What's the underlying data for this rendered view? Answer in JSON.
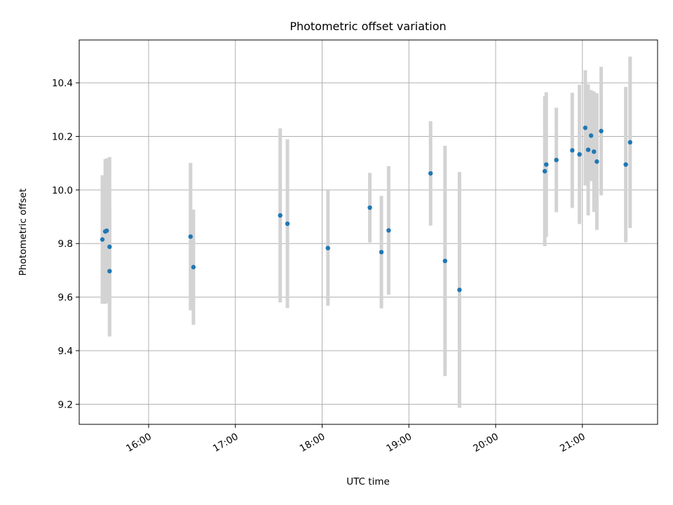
{
  "chart_data": {
    "type": "scatter",
    "title": "Photometric offset variation",
    "xlabel": "UTC time",
    "ylabel": "Photometric offset",
    "xlim": [
      "15:12",
      "21:52"
    ],
    "ylim": [
      9.125,
      10.56
    ],
    "grid": true,
    "x_ticks": [
      "16:00",
      "17:00",
      "18:00",
      "19:00",
      "20:00",
      "21:00"
    ],
    "y_ticks": [
      "9.2",
      "9.4",
      "9.6",
      "9.8",
      "10.0",
      "10.2",
      "10.4"
    ],
    "colors": {
      "point": "#1f77b4",
      "errorbar": "#d3d3d3",
      "grid": "#b0b0b0"
    },
    "points": [
      {
        "x": "15:28",
        "y": 9.815,
        "err": 0.24
      },
      {
        "x": "15:30",
        "y": 9.845,
        "err": 0.27
      },
      {
        "x": "15:31",
        "y": 9.848,
        "err": 0.27
      },
      {
        "x": "15:33",
        "y": 9.788,
        "err": 0.335
      },
      {
        "x": "15:33",
        "y": 9.697,
        "err": 0.24
      },
      {
        "x": "16:29",
        "y": 9.826,
        "err": 0.275
      },
      {
        "x": "16:31",
        "y": 9.712,
        "err": 0.215
      },
      {
        "x": "17:31",
        "y": 9.905,
        "err": 0.325
      },
      {
        "x": "17:36",
        "y": 9.874,
        "err": 0.315
      },
      {
        "x": "18:04",
        "y": 9.783,
        "err": 0.215
      },
      {
        "x": "18:33",
        "y": 9.934,
        "err": 0.13
      },
      {
        "x": "18:41",
        "y": 9.768,
        "err": 0.21
      },
      {
        "x": "18:46",
        "y": 9.849,
        "err": 0.24
      },
      {
        "x": "19:15",
        "y": 10.062,
        "err": 0.195
      },
      {
        "x": "19:25",
        "y": 9.735,
        "err": 0.43
      },
      {
        "x": "19:35",
        "y": 9.627,
        "err": 0.44
      },
      {
        "x": "20:34",
        "y": 10.07,
        "err": 0.28
      },
      {
        "x": "20:35",
        "y": 10.095,
        "err": 0.27
      },
      {
        "x": "20:42",
        "y": 10.112,
        "err": 0.195
      },
      {
        "x": "20:53",
        "y": 10.148,
        "err": 0.215
      },
      {
        "x": "20:58",
        "y": 10.133,
        "err": 0.26
      },
      {
        "x": "21:02",
        "y": 10.232,
        "err": 0.215
      },
      {
        "x": "21:04",
        "y": 10.15,
        "err": 0.245
      },
      {
        "x": "21:06",
        "y": 10.203,
        "err": 0.17
      },
      {
        "x": "21:08",
        "y": 10.143,
        "err": 0.225
      },
      {
        "x": "21:10",
        "y": 10.106,
        "err": 0.255
      },
      {
        "x": "21:13",
        "y": 10.22,
        "err": 0.24
      },
      {
        "x": "21:30",
        "y": 10.095,
        "err": 0.29
      },
      {
        "x": "21:33",
        "y": 10.178,
        "err": 0.32
      }
    ]
  }
}
